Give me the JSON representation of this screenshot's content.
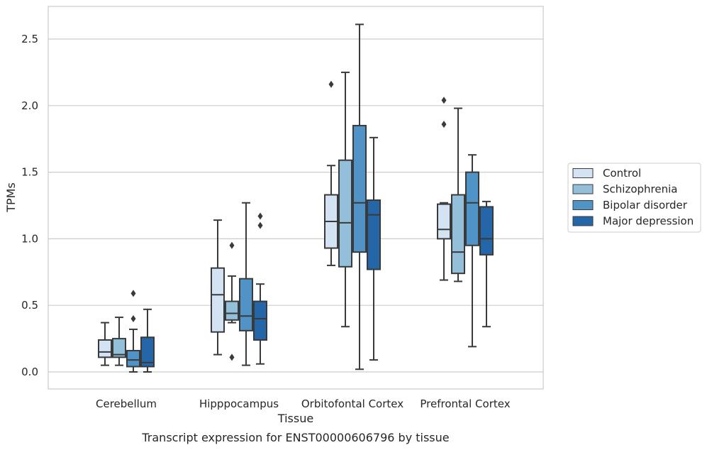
{
  "chart_data": {
    "type": "box",
    "xlabel": "Tissue",
    "ylabel": "TPMs",
    "caption": "Transcript expression for ENST00000606796 by tissue",
    "ylim": [
      -0.125,
      2.74
    ],
    "yticks": [
      0.0,
      0.5,
      1.0,
      1.5,
      2.0,
      2.5
    ],
    "ytick_labels": [
      "0.0",
      "0.5",
      "1.0",
      "1.5",
      "2.0",
      "2.5"
    ],
    "grid": "horizontal",
    "legend_position": "right",
    "categories": [
      "Cerebellum",
      "Hipppocampus",
      "Orbitofontal Cortex",
      "Prefrontal Cortex"
    ],
    "series": [
      {
        "name": "Control",
        "color": "#d3e3f3",
        "boxes": [
          {
            "whislo": 0.05,
            "q1": 0.11,
            "med": 0.15,
            "q3": 0.24,
            "whishi": 0.37,
            "fliers": []
          },
          {
            "whislo": 0.13,
            "q1": 0.3,
            "med": 0.58,
            "q3": 0.78,
            "whishi": 1.14,
            "fliers": []
          },
          {
            "whislo": 0.8,
            "q1": 0.93,
            "med": 1.13,
            "q3": 1.33,
            "whishi": 1.55,
            "fliers": [
              2.16
            ]
          },
          {
            "whislo": 0.69,
            "q1": 1.0,
            "med": 1.07,
            "q3": 1.26,
            "whishi": 1.27,
            "fliers": [
              1.86,
              2.04
            ]
          }
        ]
      },
      {
        "name": "Schizophrenia",
        "color": "#94bfda",
        "boxes": [
          {
            "whislo": 0.05,
            "q1": 0.11,
            "med": 0.13,
            "q3": 0.25,
            "whishi": 0.41,
            "fliers": []
          },
          {
            "whislo": 0.37,
            "q1": 0.39,
            "med": 0.44,
            "q3": 0.53,
            "whishi": 0.72,
            "fliers": [
              0.95,
              0.11
            ]
          },
          {
            "whislo": 0.34,
            "q1": 0.79,
            "med": 1.12,
            "q3": 1.59,
            "whishi": 2.25,
            "fliers": []
          },
          {
            "whislo": 0.68,
            "q1": 0.74,
            "med": 0.9,
            "q3": 1.33,
            "whishi": 1.98,
            "fliers": []
          }
        ]
      },
      {
        "name": "Bipolar disorder",
        "color": "#5094c7",
        "boxes": [
          {
            "whislo": 0.0,
            "q1": 0.04,
            "med": 0.09,
            "q3": 0.16,
            "whishi": 0.32,
            "fliers": [
              0.4,
              0.59
            ]
          },
          {
            "whislo": 0.05,
            "q1": 0.31,
            "med": 0.42,
            "q3": 0.7,
            "whishi": 1.27,
            "fliers": []
          },
          {
            "whislo": 0.02,
            "q1": 0.9,
            "med": 1.27,
            "q3": 1.85,
            "whishi": 2.61,
            "fliers": []
          },
          {
            "whislo": 0.19,
            "q1": 0.95,
            "med": 1.27,
            "q3": 1.5,
            "whishi": 1.63,
            "fliers": []
          }
        ]
      },
      {
        "name": "Major depression",
        "color": "#2466a7",
        "boxes": [
          {
            "whislo": 0.0,
            "q1": 0.04,
            "med": 0.07,
            "q3": 0.26,
            "whishi": 0.47,
            "fliers": []
          },
          {
            "whislo": 0.06,
            "q1": 0.24,
            "med": 0.4,
            "q3": 0.53,
            "whishi": 0.66,
            "fliers": [
              1.1,
              1.17
            ]
          },
          {
            "whislo": 0.09,
            "q1": 0.77,
            "med": 1.18,
            "q3": 1.29,
            "whishi": 1.76,
            "fliers": []
          },
          {
            "whislo": 0.34,
            "q1": 0.88,
            "med": 1.0,
            "q3": 1.24,
            "whishi": 1.28,
            "fliers": []
          }
        ]
      }
    ]
  }
}
